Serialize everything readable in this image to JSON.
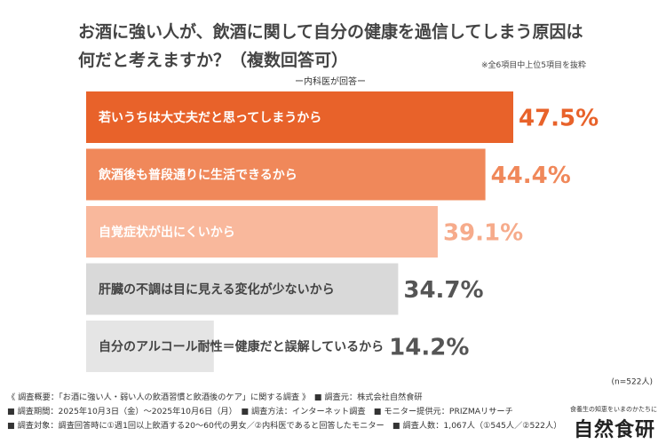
{
  "chart_data": {
    "type": "hbar",
    "title": "お酒に強い人が、飲酒に関して自分の健康を過信してしまう原因は何だと考えますか？（複数回答可）",
    "note": "※全6項目中上位5項目を抜粋",
    "subtitle": "ー内科医が回答ー",
    "categories": [
      "若いうちは大丈夫だと思ってしまうから",
      "飲酒後も普段通りに生活できるから",
      "自覚症状が出にくいから",
      "肝臓の不調は目に見える変化が少ないから",
      "自分のアルコール耐性＝健康だと誤解しているから"
    ],
    "values": [
      47.5,
      44.4,
      39.1,
      34.7,
      14.2
    ],
    "value_labels": [
      "47.5%",
      "44.4%",
      "39.1%",
      "34.7%",
      "14.2%"
    ],
    "colors": [
      "#e8622a",
      "#f0885a",
      "#f9b89c",
      "#d9d9d9",
      "#e5e5e5"
    ],
    "label_colors": [
      "#ffffff",
      "#ffffff",
      "#ffffff",
      "#444444",
      "#444444"
    ],
    "value_label_colors": [
      "#e8622a",
      "#f0885a",
      "#f6ab8b",
      "#555555",
      "#555555"
    ],
    "sample_note": "(n=522人)"
  },
  "footer": {
    "lines": [
      "《 調査概要：「お酒に強い人・弱い人の飲酒習慣と飲酒後のケア」に関する調査 》　■ 調査元：株式会社自然食研",
      "■ 調査期間：2025年10月3日（金）～2025年10月6日（月）　■ 調査方法：インターネット調査　■ モニター提供元：PRIZMAリサーチ",
      "■ 調査対象：調査回答時に①週1回以上飲酒する20～60代の男女／②内科医であると回答したモニター　■ 調査人数：1,067人（①545人／②522人）"
    ],
    "logo_tagline": "食養生の知恵をいまのかたちに",
    "logo": "自然食研"
  }
}
